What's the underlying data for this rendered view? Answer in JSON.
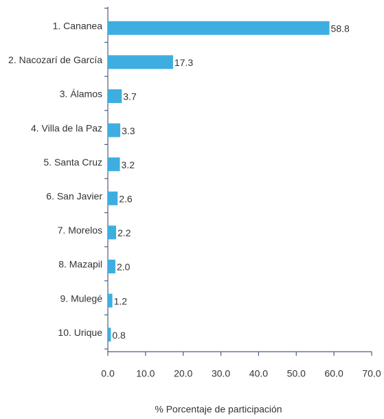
{
  "chart_data": {
    "type": "bar",
    "orientation": "horizontal",
    "categories": [
      "1. Cananea",
      "2. Nacozarí de García",
      "3. Álamos",
      "4. Villa de la Paz",
      "5. Santa Cruz",
      "6. San Javier",
      "7. Morelos",
      "8. Mazapil",
      "9. Mulegé",
      "10. Urique"
    ],
    "values": [
      58.8,
      17.3,
      3.7,
      3.3,
      3.2,
      2.6,
      2.2,
      2.0,
      1.2,
      0.8
    ],
    "value_labels": [
      "58.8",
      "17.3",
      "3.7",
      "3.3",
      "3.2",
      "2.6",
      "2.2",
      "2.0",
      "1.2",
      "0.8"
    ],
    "color": "#3eaee0",
    "xlim": [
      0,
      70
    ],
    "xticks": [
      {
        "value": 0,
        "label": "0.0"
      },
      {
        "value": 10,
        "label": "10.0"
      },
      {
        "value": 20,
        "label": "20.0"
      },
      {
        "value": 30,
        "label": "30.0"
      },
      {
        "value": 40,
        "label": "40.0"
      },
      {
        "value": 50,
        "label": "50.0"
      },
      {
        "value": 60,
        "label": "60.0"
      },
      {
        "value": 70,
        "label": "70.0"
      }
    ],
    "xlabel": "% Porcentaje de participación"
  }
}
